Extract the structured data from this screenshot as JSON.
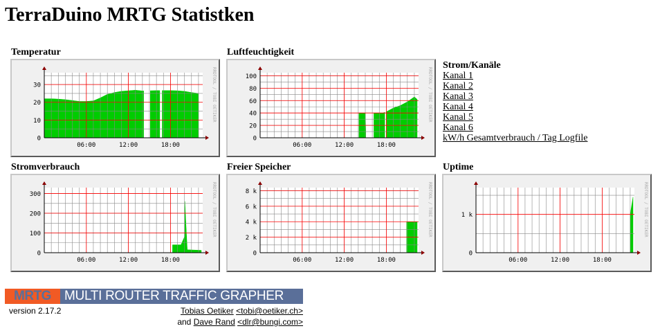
{
  "page": {
    "title": "TerraDuino MRTG Statistken"
  },
  "graphs": [
    {
      "id": "temperatur",
      "title": "Temperatur",
      "y_labels": [
        "30",
        "20",
        "10",
        "0"
      ],
      "y_ticks": [
        30,
        20,
        10,
        0
      ],
      "ymax": 36.67,
      "x_labels": [
        "06:00",
        "12:00",
        "18:00"
      ],
      "side_text": "RRDTOOL / TOBI OETIKER",
      "chart_data": {
        "type": "area",
        "x_hours": [
          0,
          1,
          2,
          3,
          4,
          5,
          6,
          7,
          8,
          9,
          10,
          11,
          12,
          13,
          14,
          15,
          16,
          17,
          18,
          19,
          20,
          21,
          22
        ],
        "values": [
          22,
          22,
          21.8,
          21.5,
          21,
          20.5,
          20.5,
          20.8,
          22.5,
          24.5,
          25.5,
          26.2,
          26.5,
          26.8,
          26.4,
          26.5,
          26.6,
          26.6,
          26.6,
          26.5,
          26.2,
          25.5,
          25
        ],
        "gaps_hours": [
          [
            14.2,
            15.1
          ],
          [
            16.5,
            16.8
          ]
        ]
      }
    },
    {
      "id": "luftfeuchtigkeit",
      "title": "Luftfeuchtigkeit",
      "y_labels": [
        "100",
        "80",
        "60",
        "40",
        "20",
        "0"
      ],
      "y_ticks": [
        100,
        80,
        60,
        40,
        20,
        0
      ],
      "ymax": 105,
      "x_labels": [
        "06:00",
        "12:00",
        "18:00"
      ],
      "side_text": "RRDTOOL / TOBI OETIKER",
      "chart_data": {
        "type": "area",
        "x_hours": [
          14.1,
          15,
          15.1,
          16,
          17,
          17.5,
          18,
          18.5,
          19,
          19.5,
          20,
          20.5,
          21,
          21.5,
          22,
          22.4
        ],
        "values": [
          40,
          40,
          0,
          40,
          40,
          40,
          42,
          45,
          48,
          50,
          52,
          55,
          58,
          62,
          66,
          62
        ],
        "gaps_hours": [
          [
            15.1,
            16.2
          ],
          [
            17.8,
            18.0
          ]
        ]
      }
    },
    {
      "id": "stromverbrauch",
      "title": "Stromverbrauch",
      "y_labels": [
        "300",
        "200",
        "100",
        "0"
      ],
      "y_ticks": [
        300,
        200,
        100,
        0
      ],
      "ymax": 330,
      "x_labels": [
        "06:00",
        "12:00",
        "18:00"
      ],
      "side_text": "RRDTOOL / TOBI OETIKER",
      "chart_data": {
        "type": "area",
        "x_hours": [
          18.3,
          19.5,
          20.0,
          20.05,
          20.2,
          20.4,
          22.4
        ],
        "values": [
          40,
          40,
          80,
          260,
          150,
          15,
          12
        ]
      }
    },
    {
      "id": "freier-speicher",
      "title": "Freier Speicher",
      "y_labels": [
        "8 k",
        "6 k",
        "4 k",
        "2 k",
        "0"
      ],
      "y_ticks": [
        8000,
        6000,
        4000,
        2000,
        0
      ],
      "ymax": 8400,
      "x_labels": [
        "06:00",
        "12:00",
        "18:00"
      ],
      "side_text": "RRDTOOL / TOBI OETIKER",
      "chart_data": {
        "type": "area",
        "x_hours": [
          20.9,
          22.4
        ],
        "values": [
          4000,
          4000
        ]
      }
    },
    {
      "id": "uptime",
      "title": "Uptime",
      "y_labels": [
        "1 k",
        "0"
      ],
      "y_ticks": [
        1000,
        0
      ],
      "ymax": 1700,
      "x_labels": [
        "06:00",
        "12:00",
        "18:00"
      ],
      "side_text": "RRDTOOL / TOBI OETIKER",
      "chart_data": {
        "type": "area",
        "x_hours": [
          22.0,
          22.4
        ],
        "values": [
          1000,
          1450
        ]
      }
    }
  ],
  "links_panel": {
    "title": "Strom/Kanäle",
    "items": [
      "Kanal 1",
      "Kanal 2",
      "Kanal 3",
      "Kanal 4",
      "Kanal 5",
      "Kanal 6",
      "kW/h Gesamtverbrauch / Tag Logfile"
    ]
  },
  "footer": {
    "logo_abbr": "MRTG",
    "logo_text": "MULTI ROUTER TRAFFIC GRAPHER",
    "version": "version 2.17.2",
    "author1_name": "Tobias Oetiker",
    "author1_email": "<tobi@oetiker.ch>",
    "and_text": "and",
    "author2_name": "Dave Rand",
    "author2_email": "<dlr@bungi.com>"
  },
  "colors": {
    "area": "#00cc00",
    "grid_major": "#ff0000",
    "grid_minor": "#888888",
    "frame_bg": "#f0f0f0"
  }
}
